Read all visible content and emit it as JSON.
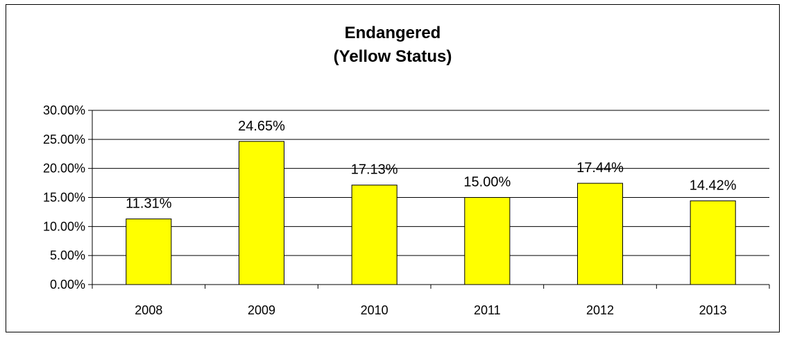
{
  "chart_data": {
    "type": "bar",
    "title_lines": [
      "Endangered",
      "(Yellow Status)"
    ],
    "categories": [
      "2008",
      "2009",
      "2010",
      "2011",
      "2012",
      "2013"
    ],
    "values": [
      11.31,
      24.65,
      17.13,
      15.0,
      17.44,
      14.42
    ],
    "data_labels": [
      "11.31%",
      "24.65%",
      "17.13%",
      "15.00%",
      "17.44%",
      "14.42%"
    ],
    "y_ticks": [
      0,
      5,
      10,
      15,
      20,
      25,
      30
    ],
    "y_tick_labels": [
      "0.00%",
      "5.00%",
      "10.00%",
      "15.00%",
      "20.00%",
      "25.00%",
      "30.00%"
    ],
    "ylim": [
      0,
      30
    ],
    "grid": true,
    "legend": "none",
    "xlabel": "",
    "ylabel": ""
  },
  "colors": {
    "bar_fill": "#ffff00",
    "bar_stroke": "#000000",
    "gridline": "#000000",
    "text": "#000000",
    "background": "#ffffff"
  }
}
